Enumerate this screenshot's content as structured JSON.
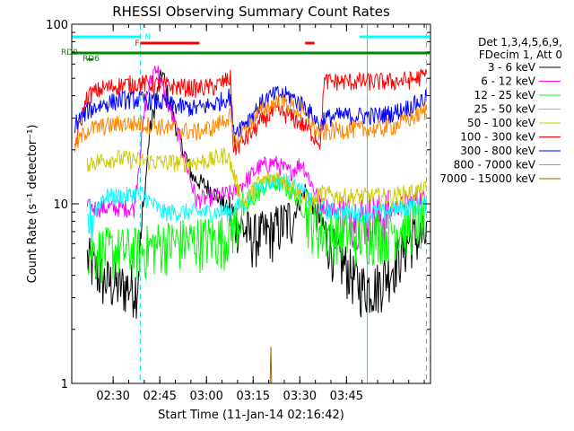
{
  "chart_data": {
    "type": "line",
    "title": "RHESSI Observing Summary Count Rates",
    "xlabel": "Start Time (11-Jan-14 02:16:42)",
    "ylabel": "Count Rate (s⁻¹ detector⁻¹)",
    "x_unit": "minutes after 02:16:42",
    "x_ticks": [
      "02:30",
      "02:45",
      "03:00",
      "03:15",
      "03:30",
      "03:45"
    ],
    "y_ticks": [
      "1",
      "10",
      "100"
    ],
    "y_scale": "log",
    "xlim": [
      "02:16:42",
      "03:52:00"
    ],
    "ylim": [
      1,
      100
    ],
    "legend": {
      "header": [
        "Det 1,3,4,5,6,9,",
        "FDecim 1, Att 0"
      ],
      "placement": "right",
      "entries": [
        {
          "label": "3 - 6 keV",
          "color": "#000000"
        },
        {
          "label": "6 - 12 keV",
          "color": "#ff00ff"
        },
        {
          "label": "12 - 25 keV",
          "color": "#00ff00"
        },
        {
          "label": "25 - 50 keV",
          "color": "#00ffff"
        },
        {
          "label": "50 - 100 keV",
          "color": "#cccc00"
        },
        {
          "label": "100 - 300 keV",
          "color": "#ff0000"
        },
        {
          "label": "300 - 800 keV",
          "color": "#0000ff"
        },
        {
          "label": "800 - 7000 keV",
          "color": "#ff8800"
        },
        {
          "label": "7000 - 15000 keV",
          "color": "#996600"
        }
      ]
    },
    "flags": [
      {
        "label": "N",
        "color": "#00ffff",
        "intervals": [
          [
            0,
            22
          ],
          [
            92.5,
            115
          ]
        ]
      },
      {
        "label": "F",
        "color": "#ff0000",
        "intervals": [
          [
            22,
            41
          ],
          [
            75,
            78
          ]
        ]
      },
      {
        "label": "RD0",
        "color": "#008800",
        "intervals": [
          [
            0,
            51
          ],
          [
            51,
            81
          ],
          [
            81,
            115
          ]
        ]
      },
      {
        "label": "RD6",
        "color": "#008800",
        "intervals": [
          [
            5,
            7
          ]
        ]
      }
    ],
    "vlines_solid": [
      0,
      95
    ],
    "vlines_dashed": [
      22,
      114
    ],
    "series": [
      {
        "name": "3 - 6 keV",
        "color": "#000000",
        "points": [
          [
            5,
            5
          ],
          [
            10,
            3.8
          ],
          [
            15,
            3.5
          ],
          [
            21,
            3.5
          ],
          [
            25,
            25
          ],
          [
            29,
            55
          ],
          [
            31,
            40
          ],
          [
            34,
            25
          ],
          [
            39,
            14
          ],
          [
            45,
            12
          ],
          [
            53,
            8
          ],
          [
            58,
            6.5
          ],
          [
            64,
            7
          ],
          [
            71,
            8.5
          ],
          [
            75,
            12
          ],
          [
            80,
            8
          ],
          [
            84,
            5.5
          ],
          [
            88,
            4.5
          ],
          [
            93,
            3.5
          ],
          [
            98,
            3.5
          ],
          [
            103,
            4.5
          ],
          [
            109,
            6.5
          ],
          [
            114,
            6.5
          ]
        ]
      },
      {
        "name": "6 - 12 keV",
        "color": "#ff00ff",
        "points": [
          [
            5,
            9.5
          ],
          [
            12,
            9.5
          ],
          [
            20,
            9.5
          ],
          [
            24,
            40
          ],
          [
            27,
            60
          ],
          [
            30,
            40
          ],
          [
            34,
            25
          ],
          [
            40,
            10.5
          ],
          [
            46,
            11
          ],
          [
            52,
            11.5
          ],
          [
            57,
            14
          ],
          [
            60,
            16
          ],
          [
            65,
            17
          ],
          [
            70,
            15
          ],
          [
            74,
            17
          ],
          [
            80,
            10
          ],
          [
            86,
            9
          ],
          [
            92,
            8.5
          ],
          [
            100,
            8.5
          ],
          [
            106,
            10
          ],
          [
            114,
            11
          ]
        ]
      },
      {
        "name": "12 - 25 keV",
        "color": "#00ff00",
        "points": [
          [
            5,
            5.5
          ],
          [
            12,
            5.5
          ],
          [
            22,
            5.5
          ],
          [
            28,
            6
          ],
          [
            36,
            6.2
          ],
          [
            44,
            6.4
          ],
          [
            49,
            6.5
          ],
          [
            53,
            8
          ],
          [
            58,
            10.5
          ],
          [
            62,
            12.5
          ],
          [
            67,
            13
          ],
          [
            72,
            11
          ],
          [
            76,
            8.5
          ],
          [
            80,
            7
          ],
          [
            85,
            7
          ],
          [
            90,
            6.8
          ],
          [
            95,
            6.8
          ],
          [
            100,
            7
          ],
          [
            106,
            7.5
          ],
          [
            114,
            8
          ]
        ]
      },
      {
        "name": "25 - 50 keV",
        "color": "#00ffff",
        "points": [
          [
            5,
            7.5
          ],
          [
            10,
            11
          ],
          [
            16,
            11
          ],
          [
            22,
            11.5
          ],
          [
            29,
            9
          ],
          [
            36,
            9
          ],
          [
            44,
            9
          ],
          [
            50,
            9
          ],
          [
            55,
            10
          ],
          [
            60,
            12.5
          ],
          [
            64,
            13.5
          ],
          [
            68,
            13.5
          ],
          [
            73,
            12
          ],
          [
            78,
            10
          ],
          [
            84,
            9
          ],
          [
            90,
            9
          ],
          [
            95,
            9
          ],
          [
            100,
            9
          ],
          [
            106,
            9.5
          ],
          [
            114,
            10
          ]
        ]
      },
      {
        "name": "50 - 100 keV",
        "color": "#cccc00",
        "points": [
          [
            5,
            17
          ],
          [
            14,
            18
          ],
          [
            22,
            17.5
          ],
          [
            30,
            17
          ],
          [
            38,
            17
          ],
          [
            45,
            17.5
          ],
          [
            50,
            19
          ],
          [
            55,
            10
          ],
          [
            60,
            13
          ],
          [
            64,
            14
          ],
          [
            68,
            14
          ],
          [
            72,
            12
          ],
          [
            77,
            10
          ],
          [
            80,
            11.5
          ],
          [
            86,
            11
          ],
          [
            92,
            11
          ],
          [
            98,
            11
          ],
          [
            103,
            11
          ],
          [
            108,
            11.5
          ],
          [
            114,
            12
          ]
        ]
      },
      {
        "name": "100 - 300 keV",
        "color": "#ff0000",
        "points": [
          [
            1,
            21
          ],
          [
            5,
            40
          ],
          [
            10,
            44
          ],
          [
            16,
            46
          ],
          [
            22,
            47
          ],
          [
            28,
            46
          ],
          [
            34,
            45
          ],
          [
            40,
            44
          ],
          [
            46,
            45
          ],
          [
            51,
            50
          ],
          [
            52,
            20
          ],
          [
            57,
            24
          ],
          [
            62,
            30
          ],
          [
            66,
            33
          ],
          [
            70,
            31
          ],
          [
            75,
            27
          ],
          [
            80,
            22
          ],
          [
            81,
            48
          ],
          [
            87,
            48
          ],
          [
            93,
            48
          ],
          [
            98,
            48
          ],
          [
            103,
            48
          ],
          [
            109,
            49
          ],
          [
            114,
            52
          ]
        ]
      },
      {
        "name": "300 - 800 keV",
        "color": "#0000ff",
        "points": [
          [
            1,
            28
          ],
          [
            5,
            33
          ],
          [
            10,
            36
          ],
          [
            16,
            38
          ],
          [
            22,
            38
          ],
          [
            28,
            37
          ],
          [
            34,
            35
          ],
          [
            40,
            34
          ],
          [
            46,
            36
          ],
          [
            51,
            40
          ],
          [
            52,
            25
          ],
          [
            57,
            30
          ],
          [
            62,
            38
          ],
          [
            66,
            41
          ],
          [
            70,
            40
          ],
          [
            75,
            35
          ],
          [
            80,
            27
          ],
          [
            81,
            30
          ],
          [
            87,
            31
          ],
          [
            93,
            31
          ],
          [
            98,
            31
          ],
          [
            103,
            32
          ],
          [
            109,
            35
          ],
          [
            114,
            39
          ]
        ]
      },
      {
        "name": "800 - 7000 keV",
        "color": "#ff8800",
        "points": [
          [
            1,
            21
          ],
          [
            5,
            26
          ],
          [
            10,
            27
          ],
          [
            16,
            28
          ],
          [
            22,
            28
          ],
          [
            28,
            27
          ],
          [
            34,
            26
          ],
          [
            40,
            25
          ],
          [
            46,
            27
          ],
          [
            51,
            31
          ],
          [
            52,
            22
          ],
          [
            57,
            28
          ],
          [
            62,
            34
          ],
          [
            66,
            37
          ],
          [
            70,
            36
          ],
          [
            75,
            31
          ],
          [
            80,
            24
          ],
          [
            81,
            25
          ],
          [
            87,
            26
          ],
          [
            93,
            26
          ],
          [
            98,
            26
          ],
          [
            103,
            27
          ],
          [
            109,
            30
          ],
          [
            114,
            33
          ]
        ]
      },
      {
        "name": "7000 - 15000 keV",
        "color": "#996600",
        "points": [
          [
            40,
            1
          ],
          [
            63.9,
            1
          ],
          [
            64,
            1.6
          ],
          [
            64.2,
            1
          ],
          [
            80,
            1
          ]
        ]
      }
    ]
  }
}
